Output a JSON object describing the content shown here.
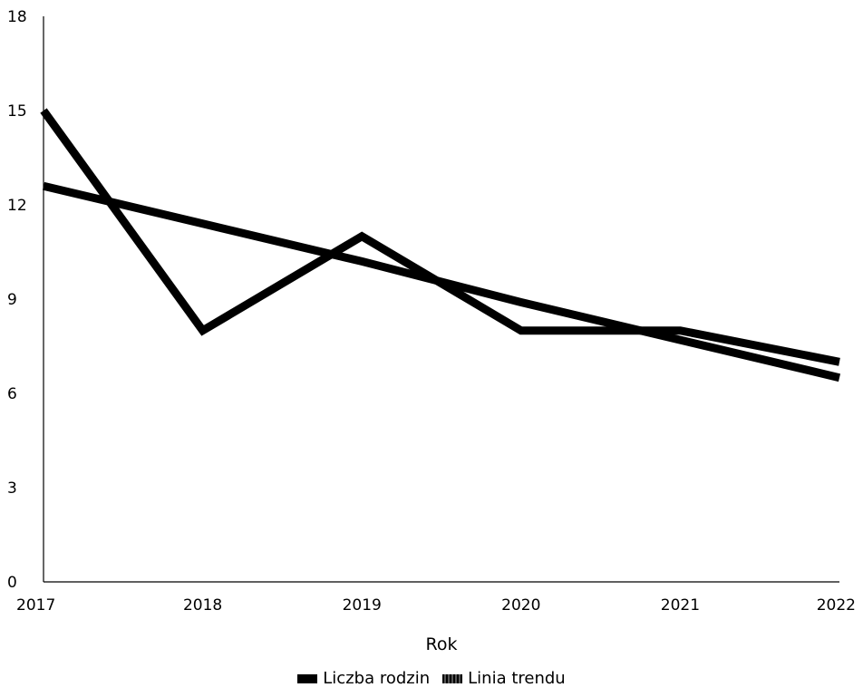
{
  "chart_data": {
    "type": "line",
    "x": [
      "2017",
      "2018",
      "2019",
      "2020",
      "2021",
      "2022"
    ],
    "series": [
      {
        "name": "Liczba rodzin",
        "values": [
          15,
          8,
          11,
          8,
          8,
          7
        ],
        "color": "#000000"
      },
      {
        "name": "Linia trendu",
        "values": [
          12.6,
          11.4,
          10.2,
          8.9,
          7.7,
          6.5
        ],
        "color": "#000000"
      }
    ],
    "xlabel": "Rok",
    "ylabel": "",
    "ylim": [
      0,
      18
    ],
    "yticks": [
      "0",
      "3",
      "6",
      "9",
      "12",
      "15",
      "18"
    ],
    "grid": false,
    "legend_position": "bottom"
  }
}
